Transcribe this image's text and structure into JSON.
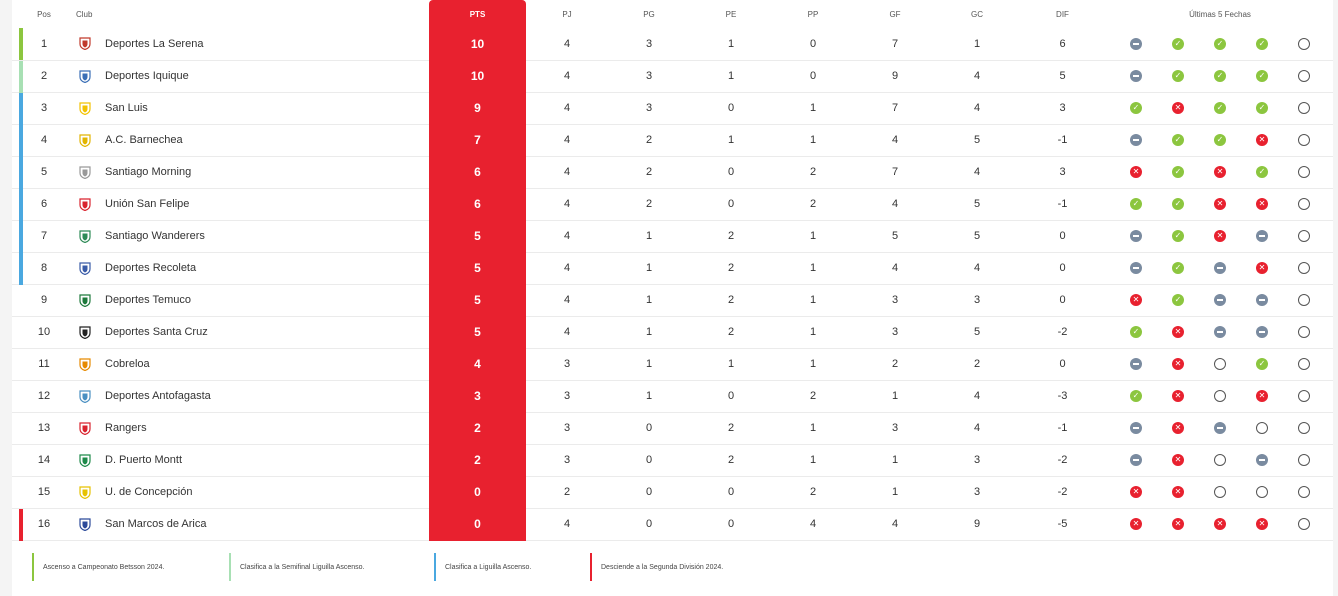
{
  "headers": {
    "pos": "Pos",
    "club": "Club",
    "pts": "PTS",
    "pj": "PJ",
    "pg": "PG",
    "pe": "PE",
    "pp": "PP",
    "gf": "GF",
    "gc": "GC",
    "dif": "DIF",
    "last5": "Últimas 5 Fechas"
  },
  "colors": {
    "promotion": "#8cc63f",
    "semifinal": "#a8e0b4",
    "liguilla": "#4aa8e0",
    "relegation": "#e8212f",
    "pts_bg": "#e8212f"
  },
  "rows": [
    {
      "pos": "1",
      "club": "Deportes La Serena",
      "pts": "10",
      "pj": "4",
      "pg": "3",
      "pe": "1",
      "pp": "0",
      "gf": "7",
      "gc": "1",
      "dif": "6",
      "zone": "promotion",
      "crest_color": "#c0392b",
      "last5": [
        "D",
        "W",
        "W",
        "W",
        "N"
      ]
    },
    {
      "pos": "2",
      "club": "Deportes Iquique",
      "pts": "10",
      "pj": "4",
      "pg": "3",
      "pe": "1",
      "pp": "0",
      "gf": "9",
      "gc": "4",
      "dif": "5",
      "zone": "semifinal",
      "crest_color": "#3b6fb6",
      "last5": [
        "D",
        "W",
        "W",
        "W",
        "N"
      ]
    },
    {
      "pos": "3",
      "club": "San Luis",
      "pts": "9",
      "pj": "4",
      "pg": "3",
      "pe": "0",
      "pp": "1",
      "gf": "7",
      "gc": "4",
      "dif": "3",
      "zone": "liguilla",
      "crest_color": "#f2c200",
      "last5": [
        "W",
        "L",
        "W",
        "W",
        "N"
      ]
    },
    {
      "pos": "4",
      "club": "A.C. Barnechea",
      "pts": "7",
      "pj": "4",
      "pg": "2",
      "pe": "1",
      "pp": "1",
      "gf": "4",
      "gc": "5",
      "dif": "-1",
      "zone": "liguilla",
      "crest_color": "#e2b500",
      "last5": [
        "D",
        "W",
        "W",
        "L",
        "N"
      ]
    },
    {
      "pos": "5",
      "club": "Santiago Morning",
      "pts": "6",
      "pj": "4",
      "pg": "2",
      "pe": "0",
      "pp": "2",
      "gf": "7",
      "gc": "4",
      "dif": "3",
      "zone": "liguilla",
      "crest_color": "#999999",
      "last5": [
        "L",
        "W",
        "L",
        "W",
        "N"
      ]
    },
    {
      "pos": "6",
      "club": "Unión San Felipe",
      "pts": "6",
      "pj": "4",
      "pg": "2",
      "pe": "0",
      "pp": "2",
      "gf": "4",
      "gc": "5",
      "dif": "-1",
      "zone": "liguilla",
      "crest_color": "#d9232e",
      "last5": [
        "W",
        "W",
        "L",
        "L",
        "N"
      ]
    },
    {
      "pos": "7",
      "club": "Santiago Wanderers",
      "pts": "5",
      "pj": "4",
      "pg": "1",
      "pe": "2",
      "pp": "1",
      "gf": "5",
      "gc": "5",
      "dif": "0",
      "zone": "liguilla",
      "crest_color": "#2e8b57",
      "last5": [
        "D",
        "W",
        "L",
        "D",
        "N"
      ]
    },
    {
      "pos": "8",
      "club": "Deportes Recoleta",
      "pts": "5",
      "pj": "4",
      "pg": "1",
      "pe": "2",
      "pp": "1",
      "gf": "4",
      "gc": "4",
      "dif": "0",
      "zone": "liguilla",
      "crest_color": "#3a5ca8",
      "last5": [
        "D",
        "W",
        "D",
        "L",
        "N"
      ]
    },
    {
      "pos": "9",
      "club": "Deportes Temuco",
      "pts": "5",
      "pj": "4",
      "pg": "1",
      "pe": "2",
      "pp": "1",
      "gf": "3",
      "gc": "3",
      "dif": "0",
      "zone": "none",
      "crest_color": "#1e7a3c",
      "last5": [
        "L",
        "W",
        "D",
        "D",
        "N"
      ]
    },
    {
      "pos": "10",
      "club": "Deportes Santa Cruz",
      "pts": "5",
      "pj": "4",
      "pg": "1",
      "pe": "2",
      "pp": "1",
      "gf": "3",
      "gc": "5",
      "dif": "-2",
      "zone": "none",
      "crest_color": "#222222",
      "last5": [
        "W",
        "L",
        "D",
        "D",
        "N"
      ]
    },
    {
      "pos": "11",
      "club": "Cobreloa",
      "pts": "4",
      "pj": "3",
      "pg": "1",
      "pe": "1",
      "pp": "1",
      "gf": "2",
      "gc": "2",
      "dif": "0",
      "zone": "none",
      "crest_color": "#e68a00",
      "last5": [
        "D",
        "L",
        "N",
        "W",
        "N"
      ]
    },
    {
      "pos": "12",
      "club": "Deportes Antofagasta",
      "pts": "3",
      "pj": "3",
      "pg": "1",
      "pe": "0",
      "pp": "2",
      "gf": "1",
      "gc": "4",
      "dif": "-3",
      "zone": "none",
      "crest_color": "#4a90c2",
      "last5": [
        "W",
        "L",
        "N",
        "L",
        "N"
      ]
    },
    {
      "pos": "13",
      "club": "Rangers",
      "pts": "2",
      "pj": "3",
      "pg": "0",
      "pe": "2",
      "pp": "1",
      "gf": "3",
      "gc": "4",
      "dif": "-1",
      "zone": "none",
      "crest_color": "#d9232e",
      "last5": [
        "D",
        "L",
        "D",
        "N",
        "N"
      ]
    },
    {
      "pos": "14",
      "club": "D. Puerto Montt",
      "pts": "2",
      "pj": "3",
      "pg": "0",
      "pe": "2",
      "pp": "1",
      "gf": "1",
      "gc": "3",
      "dif": "-2",
      "zone": "none",
      "crest_color": "#1e8a4a",
      "last5": [
        "D",
        "L",
        "N",
        "D",
        "N"
      ]
    },
    {
      "pos": "15",
      "club": "U. de Concepción",
      "pts": "0",
      "pj": "2",
      "pg": "0",
      "pe": "0",
      "pp": "2",
      "gf": "1",
      "gc": "3",
      "dif": "-2",
      "zone": "none",
      "crest_color": "#e6c200",
      "last5": [
        "L",
        "L",
        "N",
        "N",
        "N"
      ]
    },
    {
      "pos": "16",
      "club": "San Marcos de Arica",
      "pts": "0",
      "pj": "4",
      "pg": "0",
      "pe": "0",
      "pp": "4",
      "gf": "4",
      "gc": "9",
      "dif": "-5",
      "zone": "relegation",
      "crest_color": "#2c4a9a",
      "last5": [
        "L",
        "L",
        "L",
        "L",
        "N"
      ]
    }
  ],
  "legend": [
    {
      "label": "Ascenso a Campeonato Betsson 2024.",
      "color": "#8cc63f"
    },
    {
      "label": "Clasifica a la Semifinal Liguilla Ascenso.",
      "color": "#a8e0b4"
    },
    {
      "label": "Clasifica a Liguilla Ascenso.",
      "color": "#4aa8e0"
    },
    {
      "label": "Desciende a la Segunda División 2024.",
      "color": "#e8212f"
    }
  ]
}
